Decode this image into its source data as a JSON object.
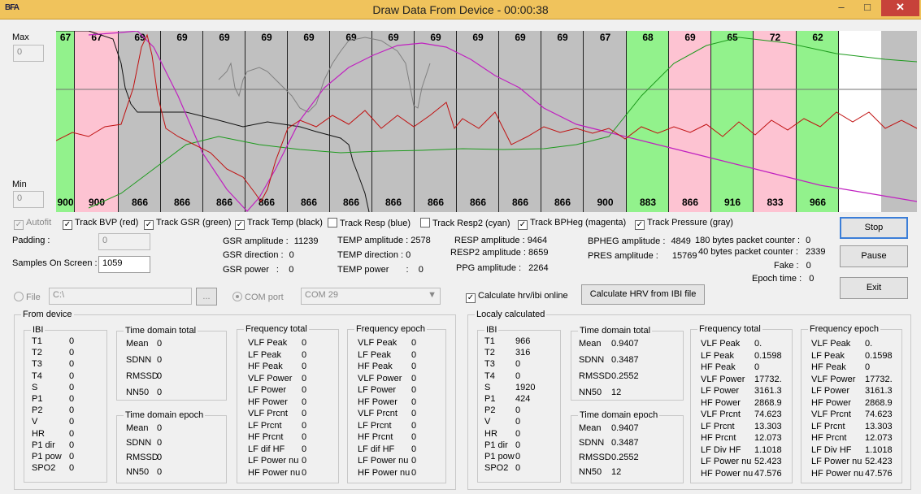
{
  "window": {
    "icon": "BFA",
    "title": "Draw Data From Device - 00:00:38",
    "min_icon": "minimize-icon",
    "max_icon": "maximize-icon",
    "close_icon": "close-icon"
  },
  "scale": {
    "max_label": "Max",
    "max_value": "0",
    "min_label": "Min",
    "min_value": "0"
  },
  "graph": {
    "segments": [
      {
        "top": "67",
        "bottom": "900",
        "color": "#92f28c"
      },
      {
        "top": "67",
        "bottom": "900",
        "color": "#fdc3d2"
      },
      {
        "top": "69",
        "bottom": "866",
        "color": "#c0c0c0"
      },
      {
        "top": "69",
        "bottom": "866",
        "color": "#c0c0c0"
      },
      {
        "top": "69",
        "bottom": "866",
        "color": "#c0c0c0"
      },
      {
        "top": "69",
        "bottom": "866",
        "color": "#c0c0c0"
      },
      {
        "top": "69",
        "bottom": "866",
        "color": "#c0c0c0"
      },
      {
        "top": "69",
        "bottom": "866",
        "color": "#c0c0c0"
      },
      {
        "top": "69",
        "bottom": "866",
        "color": "#c0c0c0"
      },
      {
        "top": "69",
        "bottom": "866",
        "color": "#c0c0c0"
      },
      {
        "top": "69",
        "bottom": "866",
        "color": "#c0c0c0"
      },
      {
        "top": "69",
        "bottom": "866",
        "color": "#c0c0c0"
      },
      {
        "top": "69",
        "bottom": "866",
        "color": "#c0c0c0"
      },
      {
        "top": "67",
        "bottom": "900",
        "color": "#c0c0c0"
      },
      {
        "top": "68",
        "bottom": "883",
        "color": "#92f28c"
      },
      {
        "top": "69",
        "bottom": "866",
        "color": "#fdc3d2"
      },
      {
        "top": "65",
        "bottom": "916",
        "color": "#92f28c"
      },
      {
        "top": "72",
        "bottom": "833",
        "color": "#fdc3d2"
      },
      {
        "top": "62",
        "bottom": "966",
        "color": "#92f28c"
      },
      {
        "top": "",
        "bottom": "",
        "color": "#ffffff"
      }
    ]
  },
  "tracks": {
    "autofit": "Autofit",
    "bvp": "Track BVP (red)",
    "gsr": "Track GSR (green)",
    "temp": "Track Temp (black)",
    "resp": "Track Resp (blue)",
    "resp2": "Track Resp2 (cyan)",
    "bpheg": "Track BPHeg (magenta)",
    "pressure": "Track Pressure (gray)"
  },
  "settings": {
    "padding_label": "Padding :",
    "padding_value": "0",
    "samples_label": "Samples On Screen :",
    "samples_value": "1059"
  },
  "stats": {
    "gsr_amplitude_label": "GSR amplitude :",
    "gsr_amplitude": "11239",
    "gsr_direction_label": "GSR direction :",
    "gsr_direction": "0",
    "gsr_power_label": "GSR power",
    "gsr_power": ":    0",
    "temp_amplitude_label": "TEMP amplitude :",
    "temp_amplitude": "2578",
    "temp_direction_label": "TEMP direction :",
    "temp_direction": "0",
    "temp_power_label": "TEMP power",
    "temp_power": ":    0",
    "resp_amplitude_label": "RESP amplitude :",
    "resp_amplitude": "9464",
    "resp2_amplitude_label": "RESP2 amplitude :",
    "resp2_amplitude": "8659",
    "ppg_amplitude_label": "PPG amplitude :",
    "ppg_amplitude": "2264",
    "bpheg_amplitude_label": "BPHEG amplitude :",
    "bpheg_amplitude": "4849",
    "pres_amplitude_label": "PRES amplitude :",
    "pres_amplitude": "15769",
    "c180_label": "180 bytes packet counter :",
    "c180": "0",
    "c40_label": "40 bytes packet counter :",
    "c40": "2339",
    "fake_label": "Fake :",
    "fake": "0",
    "epoch_label": "Epoch time :",
    "epoch": "0"
  },
  "buttons": {
    "stop": "Stop",
    "pause": "Pause",
    "exit": "Exit",
    "calc_hrv": "Calculate HRV from IBI file",
    "browse": "..."
  },
  "source": {
    "file_label": "File",
    "file_path": "C:\\",
    "com_label": "COM port",
    "com_value": "COM 29",
    "calc_online": "Calculate hrv/ibi online"
  },
  "from_device": {
    "legend": "From device",
    "ibi": {
      "title": "IBI",
      "rows": [
        [
          "T1",
          "0"
        ],
        [
          "T2",
          "0"
        ],
        [
          "T3",
          "0"
        ],
        [
          "T4",
          "0"
        ],
        [
          "S",
          "0"
        ],
        [
          "P1",
          "0"
        ],
        [
          "P2",
          "0"
        ],
        [
          "V",
          "0"
        ],
        [
          "HR",
          "0"
        ],
        [
          "P1 dir",
          "0"
        ],
        [
          "P1 pow",
          "0"
        ],
        [
          "SPO2",
          "0"
        ]
      ]
    },
    "tdt": {
      "title": "Time domain total",
      "rows": [
        [
          "Mean",
          "0"
        ],
        [
          "SDNN",
          "0"
        ],
        [
          "RMSSD",
          "0"
        ],
        [
          "NN50",
          "0"
        ]
      ]
    },
    "tde": {
      "title": "Time domain epoch",
      "rows": [
        [
          "Mean",
          "0"
        ],
        [
          "SDNN",
          "0"
        ],
        [
          "RMSSD",
          "0"
        ],
        [
          "NN50",
          "0"
        ]
      ]
    },
    "ft": {
      "title": "Frequency total",
      "rows": [
        [
          "VLF Peak",
          "0"
        ],
        [
          "LF Peak",
          "0"
        ],
        [
          "HF Peak",
          "0"
        ],
        [
          "VLF Power",
          "0"
        ],
        [
          "LF Power",
          "0"
        ],
        [
          "HF Power",
          "0"
        ],
        [
          "VLF Prcnt",
          "0"
        ],
        [
          "LF Prcnt",
          "0"
        ],
        [
          "HF Prcnt",
          "0"
        ],
        [
          "LF dif HF",
          "0"
        ],
        [
          "LF Power nu",
          "0"
        ],
        [
          "HF Power nu",
          "0"
        ]
      ]
    },
    "fe": {
      "title": "Frequency epoch",
      "rows": [
        [
          "VLF Peak",
          "0"
        ],
        [
          "LF Peak",
          "0"
        ],
        [
          "HF Peak",
          "0"
        ],
        [
          "VLF Power",
          "0"
        ],
        [
          "LF Power",
          "0"
        ],
        [
          "HF Power",
          "0"
        ],
        [
          "VLF Prcnt",
          "0"
        ],
        [
          "LF Prcnt",
          "0"
        ],
        [
          "HF Prcnt",
          "0"
        ],
        [
          "LF dif HF",
          "0"
        ],
        [
          "LF Power nu",
          "0"
        ],
        [
          "HF Power nu",
          "0"
        ]
      ]
    }
  },
  "local": {
    "legend": "Localy calculated",
    "ibi": {
      "title": "IBI",
      "rows": [
        [
          "T1",
          "966"
        ],
        [
          "T2",
          "316"
        ],
        [
          "T3",
          "0"
        ],
        [
          "T4",
          "0"
        ],
        [
          "S",
          "1920"
        ],
        [
          "P1",
          "424"
        ],
        [
          "P2",
          "0"
        ],
        [
          "V",
          "0"
        ],
        [
          "HR",
          "0"
        ],
        [
          "P1 dir",
          "0"
        ],
        [
          "P1 pow",
          "0"
        ],
        [
          "SPO2",
          "0"
        ]
      ]
    },
    "tdt": {
      "title": "Time domain total",
      "rows": [
        [
          "Mean",
          "0.9407"
        ],
        [
          "SDNN",
          "0.3487"
        ],
        [
          "RMSSD",
          "0.2552"
        ],
        [
          "NN50",
          "12"
        ]
      ]
    },
    "tde": {
      "title": "Time domain epoch",
      "rows": [
        [
          "Mean",
          "0.9407"
        ],
        [
          "SDNN",
          "0.3487"
        ],
        [
          "RMSSD",
          "0.2552"
        ],
        [
          "NN50",
          "12"
        ]
      ]
    },
    "ft": {
      "title": "Frequency total",
      "rows": [
        [
          "VLF Peak",
          "0."
        ],
        [
          "LF Peak",
          "0.1598"
        ],
        [
          "HF Peak",
          "0"
        ],
        [
          "VLF Power",
          "17732."
        ],
        [
          "LF Power",
          "3161.3"
        ],
        [
          "HF Power",
          "2868.9"
        ],
        [
          "VLF Prcnt",
          "74.623"
        ],
        [
          "LF Prcnt",
          "13.303"
        ],
        [
          "HF Prcnt",
          "12.073"
        ],
        [
          "LF Div HF",
          "1.1018"
        ],
        [
          "LF Power nu",
          "52.423"
        ],
        [
          "HF Power nu",
          "47.576"
        ]
      ]
    },
    "fe": {
      "title": "Frequency epoch",
      "rows": [
        [
          "VLF Peak",
          "0."
        ],
        [
          "LF Peak",
          "0.1598"
        ],
        [
          "HF Peak",
          "0"
        ],
        [
          "VLF Power",
          "17732."
        ],
        [
          "LF Power",
          "3161.3"
        ],
        [
          "HF Power",
          "2868.9"
        ],
        [
          "VLF Prcnt",
          "74.623"
        ],
        [
          "LF Prcnt",
          "13.303"
        ],
        [
          "HF Prcnt",
          "12.073"
        ],
        [
          "LF Div HF",
          "1.1018"
        ],
        [
          "LF Power nu",
          "52.423"
        ],
        [
          "HF Power nu",
          "47.576"
        ]
      ]
    }
  }
}
